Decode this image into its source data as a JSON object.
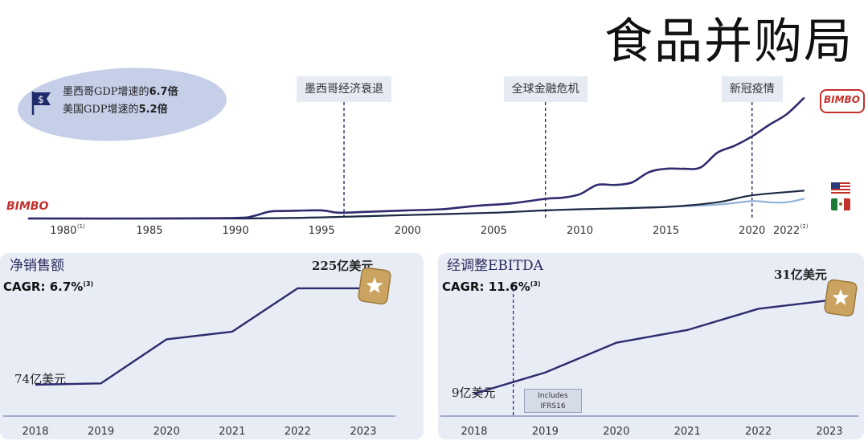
{
  "title": "食品并购局",
  "callout": {
    "line1": "墨西哥GDP增速的",
    "line1_bold": "6.7倍",
    "line2": "美国GDP增速的",
    "line2_bold": "5.2倍",
    "icon": "dollar-flag-icon"
  },
  "brand": {
    "name": "BIMBO"
  },
  "colors": {
    "primary_line": "#2e2b6e",
    "us_line": "#1f2a44",
    "mexico_line": "#8fb1d8",
    "panel_bg": "#e8ecf5",
    "star": "#c9a35f"
  },
  "chart_data": [
    {
      "type": "line",
      "x_ticks": [
        "1980",
        "1985",
        "1990",
        "1995",
        "2000",
        "2005",
        "2010",
        "2015",
        "2020",
        "2022"
      ],
      "x_tick_notes": {
        "1980": "(1)",
        "2022": "(2)"
      },
      "xlim": [
        1978,
        2023
      ],
      "ylim": [
        0,
        100
      ],
      "annotations": [
        {
          "label": "墨西哥经济衰退",
          "x": 1996.3
        },
        {
          "label": "全球金融危机",
          "x": 2008
        },
        {
          "label": "新冠疫情",
          "x": 2020
        }
      ],
      "series": [
        {
          "color": "#2e2b6e",
          "x": [
            1978,
            1985,
            1990,
            1991,
            1992,
            1993,
            1995,
            1996,
            1998,
            2000,
            2002,
            2004,
            2006,
            2008,
            2009,
            2010,
            2011,
            2012,
            2013,
            2014,
            2015,
            2016,
            2017,
            2018,
            2019,
            2020,
            2021,
            2022,
            2023
          ],
          "y": [
            0,
            0,
            0.5,
            2,
            6,
            6.5,
            7,
            5,
            6,
            7,
            8,
            11,
            13,
            17,
            18,
            21,
            29,
            29,
            31,
            40,
            43,
            43,
            44,
            57,
            63,
            71,
            81,
            90,
            104
          ]
        },
        {
          "color": "#1f2a44",
          "x": [
            1978,
            1990,
            1995,
            2000,
            2005,
            2008,
            2010,
            2015,
            2018,
            2020,
            2023
          ],
          "y": [
            0,
            0,
            1,
            3,
            5,
            7,
            8,
            10,
            14,
            20,
            24
          ]
        },
        {
          "color": "#8fb1d8",
          "x": [
            1978,
            1990,
            1995,
            2000,
            2005,
            2008,
            2010,
            2015,
            2018,
            2020,
            2021,
            2022,
            2023
          ],
          "y": [
            0,
            0,
            1,
            3,
            5,
            7,
            8,
            10,
            12,
            15,
            14,
            14,
            17
          ]
        }
      ]
    },
    {
      "type": "line",
      "title": "净销售额",
      "cagr": "CAGR: 6.7%",
      "cagr_note": "(3)",
      "categories": [
        "2018",
        "2019",
        "2020",
        "2021",
        "2022",
        "2023"
      ],
      "values": [
        74,
        76,
        145,
        157,
        225,
        225
      ],
      "ylim": [
        60,
        240
      ],
      "start_label": "74亿美元",
      "end_label": "225亿美元"
    },
    {
      "type": "line",
      "title": "经调整EBITDA",
      "cagr": "CAGR: 11.6%",
      "cagr_note": "(3)",
      "categories": [
        "2018",
        "2019",
        "2020",
        "2021",
        "2022",
        "2023"
      ],
      "values": [
        9,
        14,
        21,
        24,
        29,
        31
      ],
      "ylim": [
        6,
        34
      ],
      "start_label": "9亿美元",
      "end_label": "31亿美元",
      "marker": {
        "label_line1": "Includes",
        "label_line2": "IFRS16",
        "x": 2018.55
      }
    }
  ]
}
